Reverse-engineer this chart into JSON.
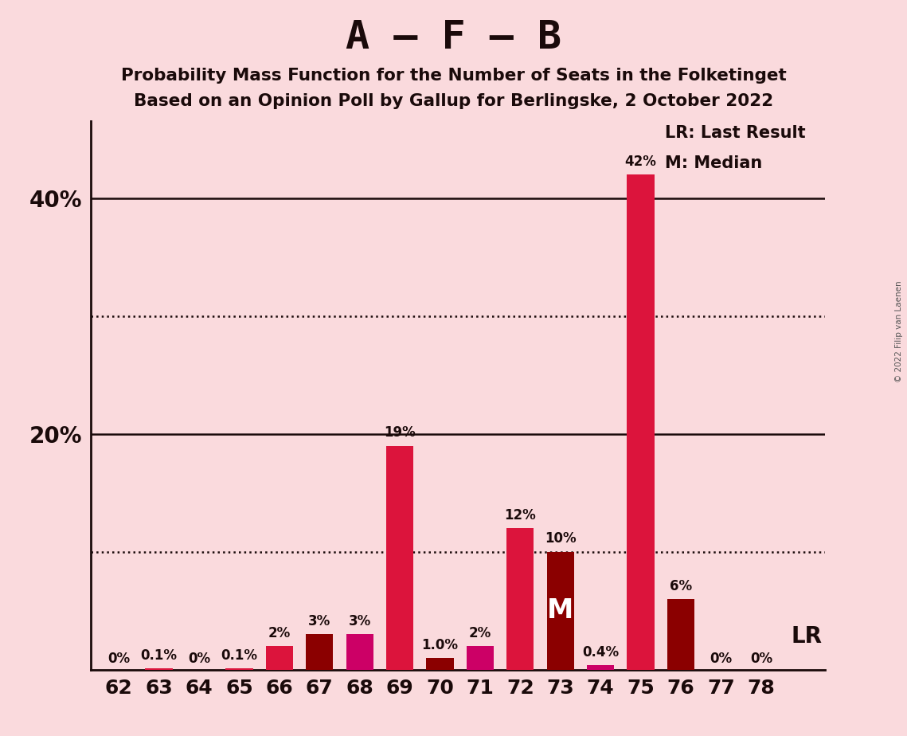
{
  "title_main": "A – F – B",
  "title_sub1": "Probability Mass Function for the Number of Seats in the Folketinget",
  "title_sub2": "Based on an Opinion Poll by Gallup for Berlingske, 2 October 2022",
  "copyright": "© 2022 Filip van Laenen",
  "categories": [
    62,
    63,
    64,
    65,
    66,
    67,
    68,
    69,
    70,
    71,
    72,
    73,
    74,
    75,
    76,
    77,
    78
  ],
  "values": [
    0.0,
    0.1,
    0.0,
    0.1,
    2.0,
    3.0,
    3.0,
    19.0,
    1.0,
    2.0,
    12.0,
    10.0,
    0.4,
    42.0,
    6.0,
    0.0,
    0.0
  ],
  "labels": [
    "0%",
    "0.1%",
    "0%",
    "0.1%",
    "2%",
    "3%",
    "3%",
    "19%",
    "1.0%",
    "2%",
    "12%",
    "10%",
    "0.4%",
    "42%",
    "6%",
    "0%",
    "0%"
  ],
  "bar_colors": [
    "#DC143C",
    "#DC143C",
    "#DC143C",
    "#DC143C",
    "#DC143C",
    "#8B0000",
    "#CC0066",
    "#DC143C",
    "#8B0000",
    "#CC0066",
    "#DC143C",
    "#8B0000",
    "#CC0066",
    "#DC143C",
    "#8B0000",
    "#DC143C",
    "#DC143C"
  ],
  "median_cat": 73,
  "background_color": "#FADADD",
  "legend_lr": "LR: Last Result",
  "legend_m": "M: Median",
  "ylim_max": 46.5,
  "solid_hlines": [
    20,
    40
  ],
  "dotted_hlines": [
    10,
    30
  ],
  "ytick_positions": [
    20,
    40
  ],
  "ytick_labels": [
    "20%",
    "40%"
  ]
}
